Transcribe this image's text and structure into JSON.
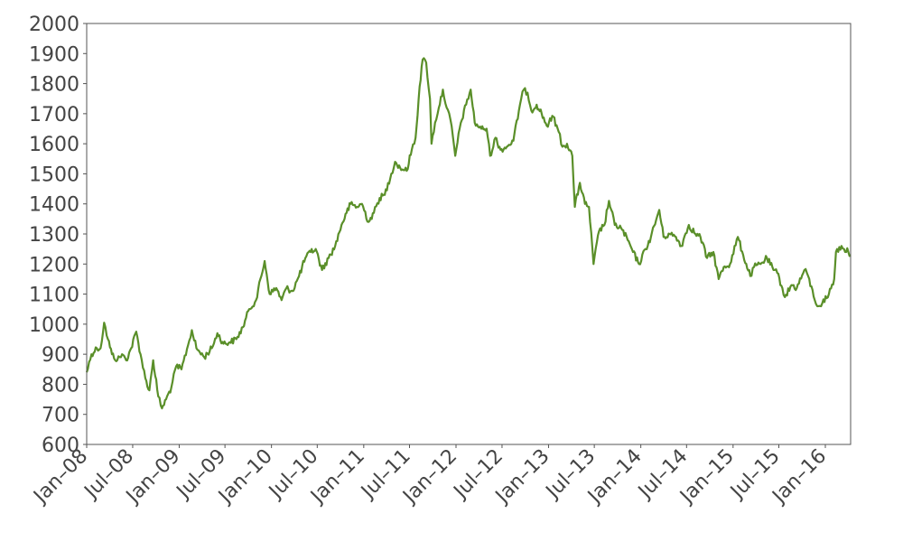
{
  "chart_data": {
    "type": "line",
    "title": "",
    "xlabel": "",
    "ylabel": "",
    "xlim": [
      "2008-01-01",
      "2016-04-10"
    ],
    "ylim": [
      600,
      2000
    ],
    "grid": false,
    "legend": "none",
    "yticks": [
      600,
      700,
      800,
      900,
      1000,
      1100,
      1200,
      1300,
      1400,
      1500,
      1600,
      1700,
      1800,
      1900,
      2000
    ],
    "xticks": [
      {
        "date": "2008-01-01",
        "label": "Jan–08"
      },
      {
        "date": "2008-07-01",
        "label": "Jul–08"
      },
      {
        "date": "2009-01-01",
        "label": "Jan–09"
      },
      {
        "date": "2009-07-01",
        "label": "Jul–09"
      },
      {
        "date": "2010-01-01",
        "label": "Jan–10"
      },
      {
        "date": "2010-07-01",
        "label": "Jul–10"
      },
      {
        "date": "2011-01-01",
        "label": "Jan–11"
      },
      {
        "date": "2011-07-01",
        "label": "Jul–11"
      },
      {
        "date": "2012-01-01",
        "label": "Jan–12"
      },
      {
        "date": "2012-07-01",
        "label": "Jul–12"
      },
      {
        "date": "2013-01-01",
        "label": "Jan–13"
      },
      {
        "date": "2013-07-01",
        "label": "Jul–13"
      },
      {
        "date": "2014-01-01",
        "label": "Jan–14"
      },
      {
        "date": "2014-07-01",
        "label": "Jul–14"
      },
      {
        "date": "2015-01-01",
        "label": "Jan–15"
      },
      {
        "date": "2015-07-01",
        "label": "Jul–15"
      },
      {
        "date": "2016-01-01",
        "label": "Jan–16"
      }
    ],
    "series": [
      {
        "color": "#5a8f29",
        "points": [
          [
            "2008-01-01",
            840
          ],
          [
            "2008-01-20",
            900
          ],
          [
            "2008-02-10",
            920
          ],
          [
            "2008-02-25",
            920
          ],
          [
            "2008-03-10",
            1005
          ],
          [
            "2008-03-25",
            950
          ],
          [
            "2008-04-10",
            900
          ],
          [
            "2008-05-01",
            880
          ],
          [
            "2008-05-20",
            900
          ],
          [
            "2008-06-05",
            880
          ],
          [
            "2008-06-25",
            920
          ],
          [
            "2008-07-15",
            975
          ],
          [
            "2008-08-01",
            900
          ],
          [
            "2008-08-20",
            820
          ],
          [
            "2008-09-05",
            780
          ],
          [
            "2008-09-20",
            880
          ],
          [
            "2008-10-10",
            760
          ],
          [
            "2008-10-25",
            720
          ],
          [
            "2008-11-10",
            750
          ],
          [
            "2008-12-01",
            790
          ],
          [
            "2008-12-20",
            860
          ],
          [
            "2009-01-10",
            850
          ],
          [
            "2009-02-05",
            930
          ],
          [
            "2009-02-20",
            980
          ],
          [
            "2009-03-10",
            920
          ],
          [
            "2009-04-10",
            890
          ],
          [
            "2009-05-10",
            920
          ],
          [
            "2009-06-01",
            970
          ],
          [
            "2009-06-25",
            935
          ],
          [
            "2009-07-20",
            940
          ],
          [
            "2009-08-15",
            950
          ],
          [
            "2009-09-10",
            990
          ],
          [
            "2009-10-05",
            1050
          ],
          [
            "2009-11-01",
            1080
          ],
          [
            "2009-12-05",
            1210
          ],
          [
            "2009-12-25",
            1100
          ],
          [
            "2010-01-20",
            1120
          ],
          [
            "2010-02-10",
            1080
          ],
          [
            "2010-03-01",
            1120
          ],
          [
            "2010-03-25",
            1110
          ],
          [
            "2010-04-20",
            1160
          ],
          [
            "2010-05-15",
            1220
          ],
          [
            "2010-06-05",
            1240
          ],
          [
            "2010-06-25",
            1250
          ],
          [
            "2010-07-20",
            1180
          ],
          [
            "2010-08-15",
            1220
          ],
          [
            "2010-09-10",
            1260
          ],
          [
            "2010-10-05",
            1330
          ],
          [
            "2010-10-25",
            1370
          ],
          [
            "2010-11-10",
            1400
          ],
          [
            "2010-12-05",
            1390
          ],
          [
            "2010-12-25",
            1400
          ],
          [
            "2011-01-20",
            1340
          ],
          [
            "2011-02-10",
            1370
          ],
          [
            "2011-03-05",
            1420
          ],
          [
            "2011-03-25",
            1430
          ],
          [
            "2011-04-20",
            1500
          ],
          [
            "2011-05-05",
            1540
          ],
          [
            "2011-05-25",
            1520
          ],
          [
            "2011-06-20",
            1510
          ],
          [
            "2011-07-10",
            1580
          ],
          [
            "2011-07-25",
            1620
          ],
          [
            "2011-08-10",
            1790
          ],
          [
            "2011-08-22",
            1880
          ],
          [
            "2011-09-05",
            1870
          ],
          [
            "2011-09-20",
            1750
          ],
          [
            "2011-09-26",
            1600
          ],
          [
            "2011-10-10",
            1670
          ],
          [
            "2011-10-25",
            1720
          ],
          [
            "2011-11-10",
            1780
          ],
          [
            "2011-11-25",
            1720
          ],
          [
            "2011-12-10",
            1680
          ],
          [
            "2011-12-29",
            1560
          ],
          [
            "2012-01-20",
            1670
          ],
          [
            "2012-02-10",
            1730
          ],
          [
            "2012-02-28",
            1780
          ],
          [
            "2012-03-15",
            1670
          ],
          [
            "2012-04-10",
            1650
          ],
          [
            "2012-05-01",
            1650
          ],
          [
            "2012-05-15",
            1560
          ],
          [
            "2012-06-05",
            1620
          ],
          [
            "2012-06-25",
            1580
          ],
          [
            "2012-07-20",
            1590
          ],
          [
            "2012-08-15",
            1610
          ],
          [
            "2012-09-10",
            1730
          ],
          [
            "2012-09-25",
            1780
          ],
          [
            "2012-10-10",
            1770
          ],
          [
            "2012-10-25",
            1710
          ],
          [
            "2012-11-15",
            1730
          ],
          [
            "2012-12-05",
            1700
          ],
          [
            "2012-12-25",
            1660
          ],
          [
            "2013-01-20",
            1690
          ],
          [
            "2013-02-10",
            1640
          ],
          [
            "2013-02-25",
            1590
          ],
          [
            "2013-03-15",
            1600
          ],
          [
            "2013-04-05",
            1560
          ],
          [
            "2013-04-15",
            1390
          ],
          [
            "2013-05-05",
            1470
          ],
          [
            "2013-05-25",
            1400
          ],
          [
            "2013-06-10",
            1390
          ],
          [
            "2013-06-28",
            1200
          ],
          [
            "2013-07-20",
            1310
          ],
          [
            "2013-08-10",
            1330
          ],
          [
            "2013-08-28",
            1410
          ],
          [
            "2013-09-20",
            1330
          ],
          [
            "2013-10-15",
            1320
          ],
          [
            "2013-11-10",
            1280
          ],
          [
            "2013-12-01",
            1240
          ],
          [
            "2013-12-25",
            1200
          ],
          [
            "2014-01-20",
            1250
          ],
          [
            "2014-02-10",
            1290
          ],
          [
            "2014-03-15",
            1380
          ],
          [
            "2014-04-01",
            1290
          ],
          [
            "2014-04-25",
            1300
          ],
          [
            "2014-05-20",
            1290
          ],
          [
            "2014-06-10",
            1260
          ],
          [
            "2014-07-10",
            1330
          ],
          [
            "2014-08-05",
            1300
          ],
          [
            "2014-08-25",
            1290
          ],
          [
            "2014-09-20",
            1220
          ],
          [
            "2014-10-15",
            1240
          ],
          [
            "2014-11-05",
            1150
          ],
          [
            "2014-11-25",
            1190
          ],
          [
            "2014-12-20",
            1200
          ],
          [
            "2015-01-20",
            1290
          ],
          [
            "2015-02-10",
            1230
          ],
          [
            "2015-03-10",
            1160
          ],
          [
            "2015-03-25",
            1190
          ],
          [
            "2015-04-20",
            1200
          ],
          [
            "2015-05-15",
            1220
          ],
          [
            "2015-06-10",
            1180
          ],
          [
            "2015-06-25",
            1170
          ],
          [
            "2015-07-15",
            1120
          ],
          [
            "2015-07-25",
            1090
          ],
          [
            "2015-08-20",
            1130
          ],
          [
            "2015-09-10",
            1120
          ],
          [
            "2015-10-10",
            1180
          ],
          [
            "2015-10-25",
            1160
          ],
          [
            "2015-11-20",
            1080
          ],
          [
            "2015-12-05",
            1060
          ],
          [
            "2015-12-20",
            1070
          ],
          [
            "2016-01-15",
            1100
          ],
          [
            "2016-02-05",
            1150
          ],
          [
            "2016-02-12",
            1240
          ],
          [
            "2016-03-05",
            1260
          ],
          [
            "2016-03-15",
            1250
          ],
          [
            "2016-04-01",
            1240
          ],
          [
            "2016-04-10",
            1230
          ]
        ]
      }
    ]
  }
}
